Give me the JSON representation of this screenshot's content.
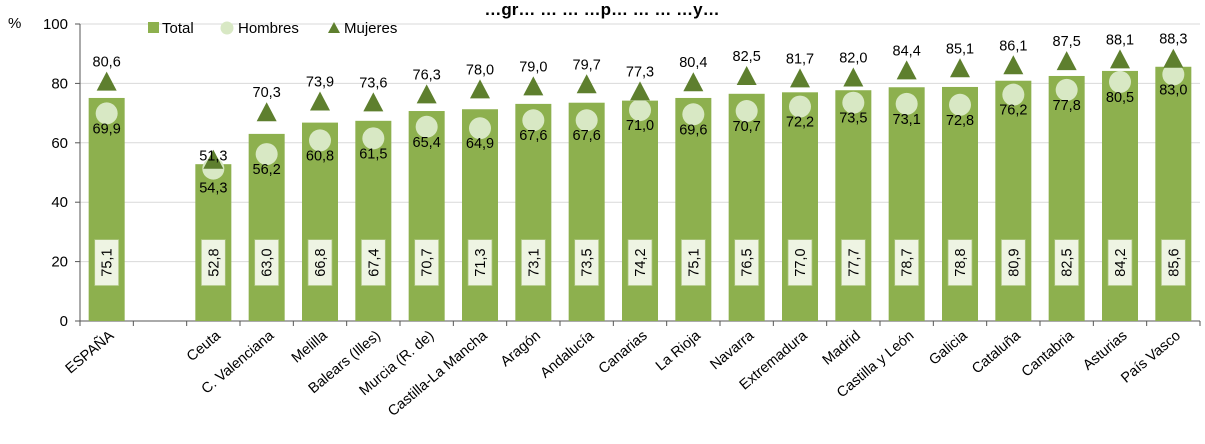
{
  "chart_data": {
    "type": "bar",
    "title": "…gr… … … …p… … … …y…",
    "ylabel": "%",
    "ylim": [
      0,
      100
    ],
    "yticks": [
      0,
      20,
      40,
      60,
      80,
      100
    ],
    "grid": true,
    "legend_position": "top-left",
    "categories": [
      "ESPAÑA",
      "",
      "Ceuta",
      "C. Valenciana",
      "Melilla",
      "Balears (Illes)",
      "Murcia (R. de)",
      "Castilla-La Mancha",
      "Aragón",
      "Andalucía",
      "Canarias",
      "La Rioja",
      "Navarra",
      "Extremadura",
      "Madrid",
      "Castilla y León",
      "Galicia",
      "Cataluña",
      "Cantabria",
      "Asturias",
      "País Vasco"
    ],
    "series": [
      {
        "name": "Total",
        "type": "bar",
        "color": "#8db04e",
        "values": [
          75.1,
          null,
          52.8,
          63.0,
          66.8,
          67.4,
          70.7,
          71.3,
          73.1,
          73.5,
          74.2,
          75.1,
          76.5,
          77.0,
          77.7,
          78.7,
          78.8,
          80.9,
          82.5,
          84.2,
          85.6
        ]
      },
      {
        "name": "Hombres",
        "type": "circle",
        "color": "#d8e8c4",
        "values": [
          69.9,
          null,
          51.3,
          56.2,
          60.8,
          61.5,
          65.4,
          64.9,
          67.6,
          67.6,
          71.0,
          69.6,
          70.7,
          72.2,
          73.5,
          73.1,
          72.8,
          76.2,
          77.8,
          80.5,
          83.0
        ]
      },
      {
        "name": "Mujeres",
        "type": "triangle",
        "color": "#5e7f2e",
        "values": [
          80.6,
          null,
          54.3,
          70.3,
          73.9,
          73.6,
          76.3,
          78.0,
          79.0,
          79.7,
          77.3,
          80.4,
          82.5,
          81.7,
          82.0,
          84.4,
          85.1,
          86.1,
          87.5,
          88.1,
          88.3
        ]
      }
    ],
    "labels": {
      "total": [
        "75,1",
        "",
        "52,8",
        "63,0",
        "66,8",
        "67,4",
        "70,7",
        "71,3",
        "73,1",
        "73,5",
        "74,2",
        "75,1",
        "76,5",
        "77,0",
        "77,7",
        "78,7",
        "78,8",
        "80,9",
        "82,5",
        "84,2",
        "85,6"
      ],
      "hombres": [
        "69,9",
        "",
        "51,3",
        "56,2",
        "60,8",
        "61,5",
        "65,4",
        "64,9",
        "67,6",
        "67,6",
        "71,0",
        "69,6",
        "70,7",
        "72,2",
        "73,5",
        "73,1",
        "72,8",
        "76,2",
        "77,8",
        "80,5",
        "83,0"
      ],
      "mujeres": [
        "80,6",
        "",
        "54,3",
        "70,3",
        "73,9",
        "73,6",
        "76,3",
        "78,0",
        "79,0",
        "79,7",
        "77,3",
        "80,4",
        "82,5",
        "81,7",
        "82,0",
        "84,4",
        "85,1",
        "86,1",
        "87,5",
        "88,1",
        "88,3"
      ]
    }
  }
}
